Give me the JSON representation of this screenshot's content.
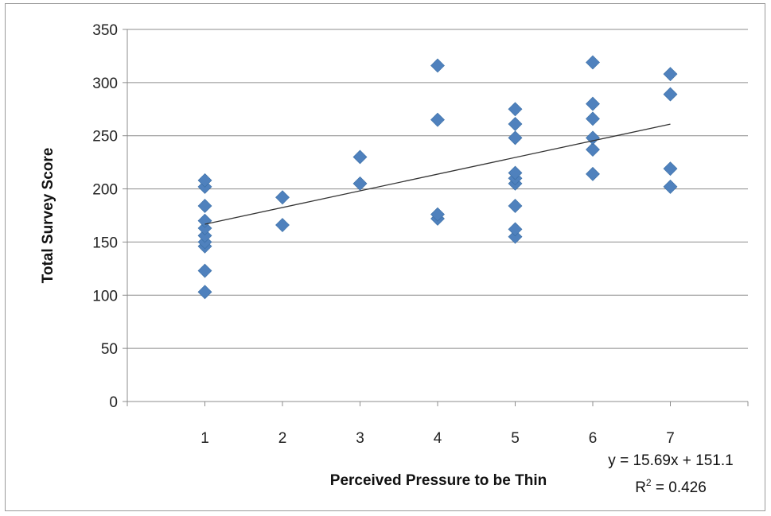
{
  "chart_data": {
    "type": "scatter",
    "title": "",
    "xlabel": "Perceived Pressure to be Thin",
    "ylabel": "Total Survey Score",
    "xlim": [
      0,
      8
    ],
    "ylim": [
      0,
      350
    ],
    "xticks": [
      1,
      2,
      3,
      4,
      5,
      6,
      7
    ],
    "yticks": [
      0,
      50,
      100,
      150,
      200,
      250,
      300,
      350
    ],
    "grid": "horizontal",
    "marker_color": "#4F81BD",
    "trend_color": "#333333",
    "points": [
      {
        "x": 1,
        "y": 103
      },
      {
        "x": 1,
        "y": 123
      },
      {
        "x": 1,
        "y": 146
      },
      {
        "x": 1,
        "y": 150
      },
      {
        "x": 1,
        "y": 156
      },
      {
        "x": 1,
        "y": 163
      },
      {
        "x": 1,
        "y": 170
      },
      {
        "x": 1,
        "y": 184
      },
      {
        "x": 1,
        "y": 202
      },
      {
        "x": 1,
        "y": 208
      },
      {
        "x": 2,
        "y": 166
      },
      {
        "x": 2,
        "y": 192
      },
      {
        "x": 3,
        "y": 205
      },
      {
        "x": 3,
        "y": 230
      },
      {
        "x": 4,
        "y": 172
      },
      {
        "x": 4,
        "y": 176
      },
      {
        "x": 4,
        "y": 265
      },
      {
        "x": 4,
        "y": 316
      },
      {
        "x": 5,
        "y": 155
      },
      {
        "x": 5,
        "y": 162
      },
      {
        "x": 5,
        "y": 184
      },
      {
        "x": 5,
        "y": 205
      },
      {
        "x": 5,
        "y": 210
      },
      {
        "x": 5,
        "y": 215
      },
      {
        "x": 5,
        "y": 248
      },
      {
        "x": 5,
        "y": 261
      },
      {
        "x": 5,
        "y": 275
      },
      {
        "x": 6,
        "y": 214
      },
      {
        "x": 6,
        "y": 237
      },
      {
        "x": 6,
        "y": 248
      },
      {
        "x": 6,
        "y": 266
      },
      {
        "x": 6,
        "y": 280
      },
      {
        "x": 6,
        "y": 319
      },
      {
        "x": 7,
        "y": 202
      },
      {
        "x": 7,
        "y": 219
      },
      {
        "x": 7,
        "y": 289
      },
      {
        "x": 7,
        "y": 308
      }
    ],
    "trendline": {
      "slope": 15.69,
      "intercept": 151.1,
      "x_from": 1,
      "x_to": 7
    },
    "annotations": {
      "equation": "y = 15.69x + 151.1",
      "r2_prefix": "R",
      "r2_sup": "2",
      "r2_suffix": " = 0.426"
    }
  }
}
